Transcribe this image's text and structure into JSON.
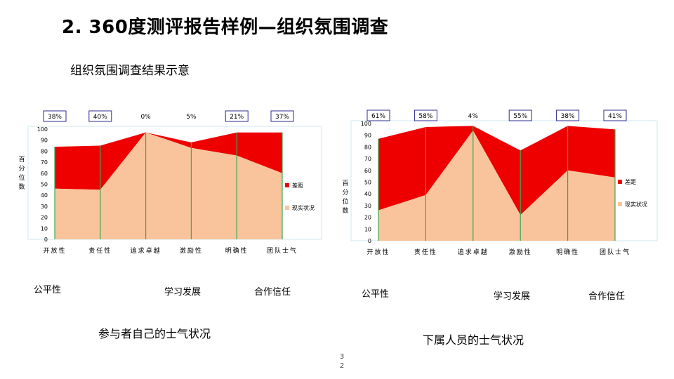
{
  "slide": {
    "title": "2. 360度测评报告样例—组织氛围调查",
    "subtitle": "组织氛围调查结果示意",
    "page_number_line1": "3",
    "page_number_line2": "2"
  },
  "left_below_labels": [
    "公平性",
    "学习发展",
    "合作信任"
  ],
  "right_below_labels": [
    "公平性",
    "学习发展",
    "合作信任"
  ],
  "captions": {
    "left": "参与者自己的士气状况",
    "right": "下属人员的士气状况"
  },
  "colors": {
    "gap": "#ee0000",
    "actual": "#f9c49c",
    "divider": "#3aa655",
    "label_box_border": "#2b2b8f"
  },
  "chart_data": [
    {
      "type": "area",
      "categories": [
        "开放性",
        "责任性",
        "追求卓越",
        "激励性",
        "明确性",
        "团队士气"
      ],
      "ylabel": "百分位数",
      "ylim": [
        0,
        100
      ],
      "yticks": [
        0,
        10,
        20,
        30,
        40,
        50,
        60,
        70,
        80,
        90,
        100
      ],
      "series": [
        {
          "name": "现实状况",
          "values": [
            46,
            45,
            97,
            83,
            76,
            60
          ]
        },
        {
          "name": "差距",
          "values": [
            38,
            40,
            0,
            5,
            21,
            37
          ]
        }
      ],
      "gap_labels": [
        "38%",
        "40%",
        "0%",
        "5%",
        "21%",
        "37%"
      ],
      "boxed_labels": [
        true,
        true,
        false,
        false,
        true,
        true
      ],
      "legend": "right"
    },
    {
      "type": "area",
      "categories": [
        "开放性",
        "责任性",
        "追求卓越",
        "激励性",
        "明确性",
        "团队士气"
      ],
      "ylabel": "百分位数",
      "ylim": [
        0,
        100
      ],
      "yticks": [
        0,
        10,
        20,
        30,
        40,
        50,
        60,
        70,
        80,
        90,
        100
      ],
      "series": [
        {
          "name": "现实状况",
          "values": [
            26,
            39,
            94,
            22,
            60,
            54
          ]
        },
        {
          "name": "差距",
          "values": [
            61,
            58,
            4,
            55,
            38,
            41
          ]
        }
      ],
      "gap_labels": [
        "61%",
        "58%",
        "4%",
        "55%",
        "38%",
        "41%"
      ],
      "boxed_labels": [
        true,
        true,
        false,
        true,
        true,
        true
      ],
      "legend": "right"
    }
  ]
}
